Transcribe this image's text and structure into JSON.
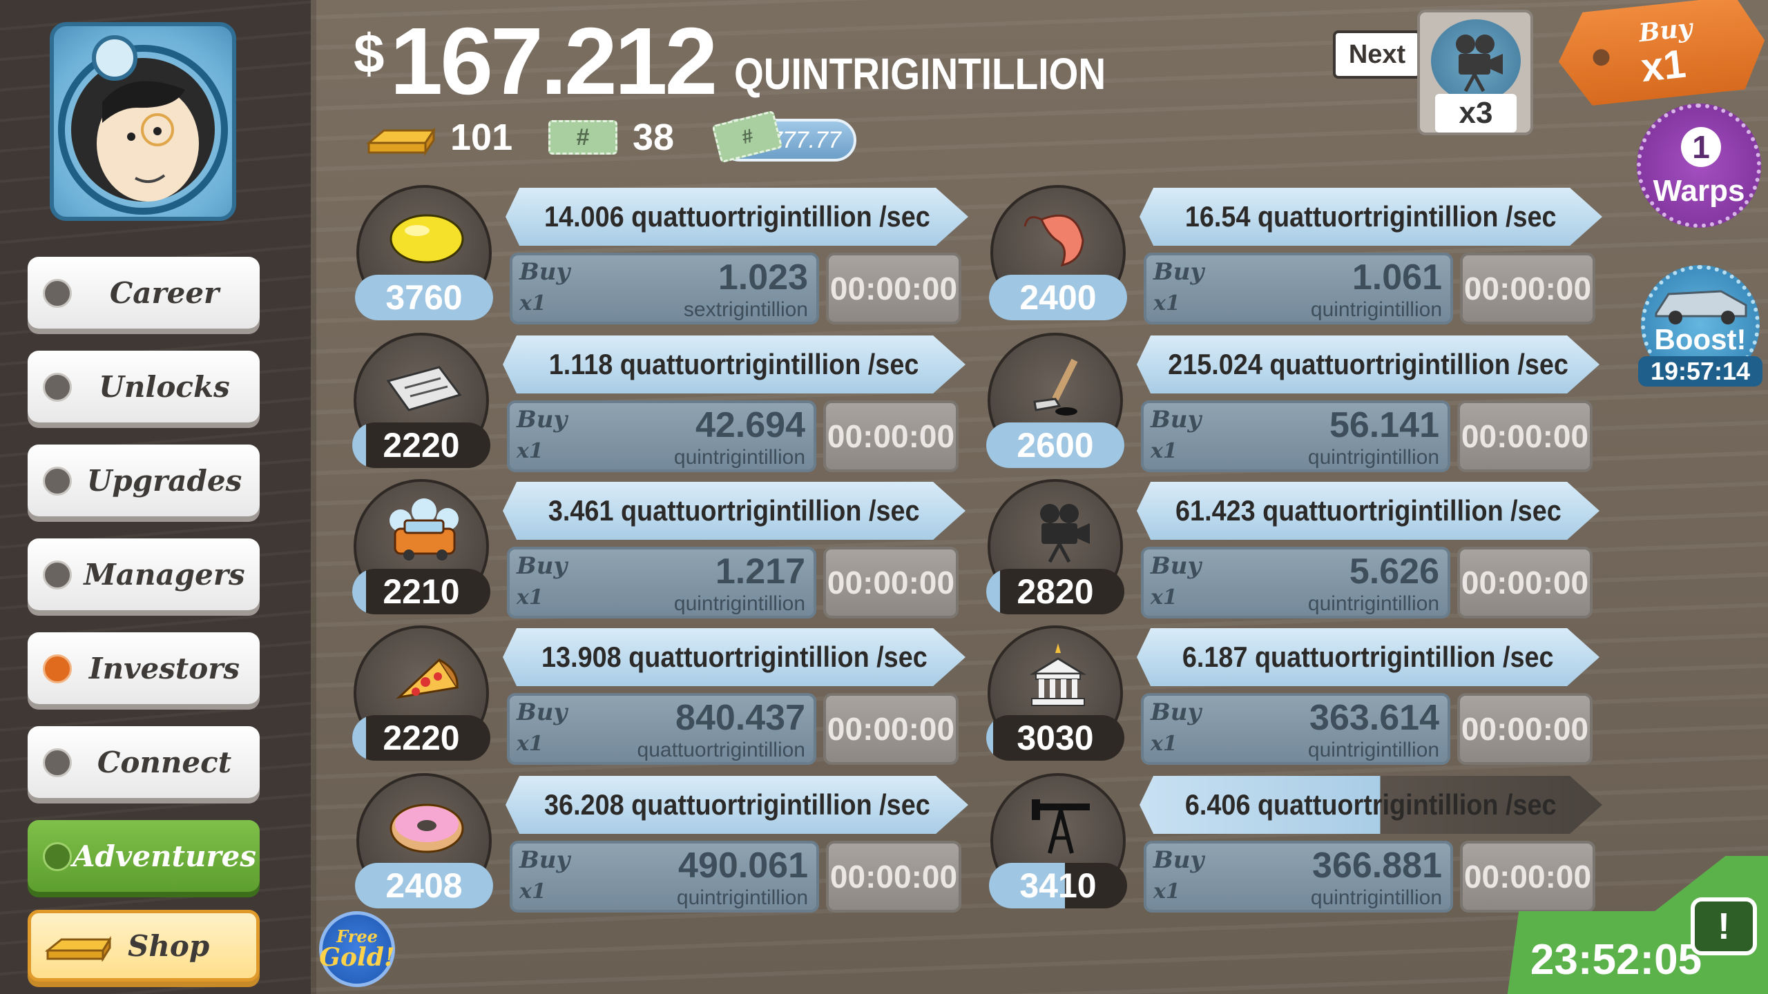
{
  "header": {
    "currency_symbol": "$",
    "money_amount": "167.212",
    "money_unit": "QUINTRIGINTILLION",
    "gold_count": "101",
    "megabucks_count": "38",
    "megabucks_icon": "#",
    "multiplier": "x777.77"
  },
  "next": {
    "label": "Next",
    "multiplier": "x3"
  },
  "buy_mode": {
    "line1": "Buy",
    "line2": "x1"
  },
  "warps": {
    "count": "1",
    "label": "Warps"
  },
  "boost": {
    "label": "Boost!",
    "time": "19:57:14"
  },
  "sidebar": {
    "items": [
      {
        "label": "Career"
      },
      {
        "label": "Unlocks"
      },
      {
        "label": "Upgrades"
      },
      {
        "label": "Managers"
      },
      {
        "label": "Investors"
      },
      {
        "label": "Connect"
      },
      {
        "label": "Adventures"
      },
      {
        "label": "Shop"
      }
    ]
  },
  "free_gold": {
    "line1": "Free",
    "line2": "Gold!"
  },
  "bottom_timer": "23:52:05",
  "bottom_icon": "!",
  "businesses": [
    {
      "icon": "lemon-icon",
      "count": "3760",
      "progress": 1.0,
      "rate": "14.006 quattuortrigintillion /sec",
      "buy1": "Buy",
      "buy2": "x1",
      "cost": "1.023",
      "cost_unit": "sextrigintillion",
      "timer": "00:00:00"
    },
    {
      "icon": "shrimp-icon",
      "count": "2400",
      "progress": 1.0,
      "rate": "16.54 quattuortrigintillion /sec",
      "buy1": "Buy",
      "buy2": "x1",
      "cost": "1.061",
      "cost_unit": "quintrigintillion",
      "timer": "00:00:00"
    },
    {
      "icon": "newspaper-icon",
      "count": "2220",
      "progress": 0.1,
      "rate": "1.118 quattuortrigintillion /sec",
      "buy1": "Buy",
      "buy2": "x1",
      "cost": "42.694",
      "cost_unit": "quintrigintillion",
      "timer": "00:00:00"
    },
    {
      "icon": "hockey-icon",
      "count": "2600",
      "progress": 1.0,
      "rate": "215.024 quattuortrigintillion /sec",
      "buy1": "Buy",
      "buy2": "x1",
      "cost": "56.141",
      "cost_unit": "quintrigintillion",
      "timer": "00:00:00"
    },
    {
      "icon": "car-wash-icon",
      "count": "2210",
      "progress": 0.1,
      "rate": "3.461 quattuortrigintillion /sec",
      "buy1": "Buy",
      "buy2": "x1",
      "cost": "1.217",
      "cost_unit": "quintrigintillion",
      "timer": "00:00:00"
    },
    {
      "icon": "movie-camera-icon",
      "count": "2820",
      "progress": 0.1,
      "rate": "61.423 quattuortrigintillion /sec",
      "buy1": "Buy",
      "buy2": "x1",
      "cost": "5.626",
      "cost_unit": "quintrigintillion",
      "timer": "00:00:00"
    },
    {
      "icon": "pizza-icon",
      "count": "2220",
      "progress": 0.1,
      "rate": "13.908 quattuortrigintillion /sec",
      "buy1": "Buy",
      "buy2": "x1",
      "cost": "840.437",
      "cost_unit": "quattuortrigintillion",
      "timer": "00:00:00"
    },
    {
      "icon": "bank-icon",
      "count": "3030",
      "progress": 0.05,
      "rate": "6.187 quattuortrigintillion /sec",
      "buy1": "Buy",
      "buy2": "x1",
      "cost": "363.614",
      "cost_unit": "quintrigintillion",
      "timer": "00:00:00"
    },
    {
      "icon": "donut-icon",
      "count": "2408",
      "progress": 1.0,
      "rate": "36.208 quattuortrigintillion /sec",
      "buy1": "Buy",
      "buy2": "x1",
      "cost": "490.061",
      "cost_unit": "quintrigintillion",
      "timer": "00:00:00"
    },
    {
      "icon": "oil-rig-icon",
      "count": "3410",
      "progress": 0.55,
      "rate": "6.406 quattuortrigintillion /sec",
      "buy1": "Buy",
      "buy2": "x1",
      "cost": "366.881",
      "cost_unit": "quintrigintillion",
      "timer": "00:00:00"
    }
  ]
}
